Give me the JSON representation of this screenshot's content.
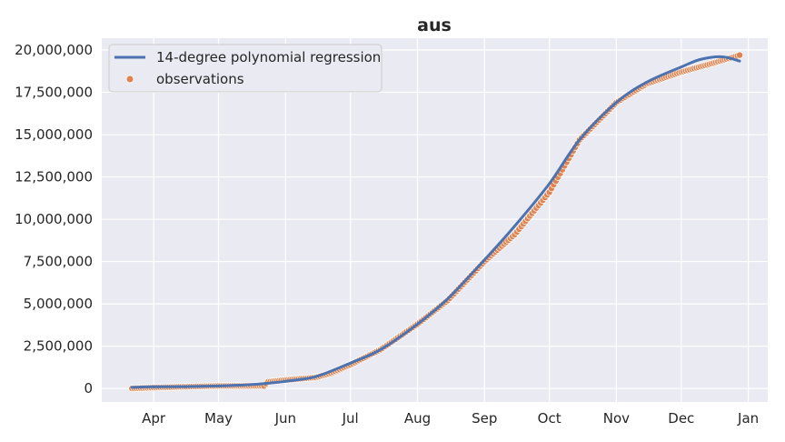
{
  "chart_data": {
    "type": "line",
    "title": "aus",
    "xlabel": "",
    "ylabel": "",
    "x_range": [
      "2021-03-08",
      "2022-01-10"
    ],
    "ylim": [
      -800000,
      20700000
    ],
    "x_ticks": [
      {
        "date": "2021-04-01",
        "label": "Apr"
      },
      {
        "date": "2021-05-01",
        "label": "May"
      },
      {
        "date": "2021-06-01",
        "label": "Jun"
      },
      {
        "date": "2021-07-01",
        "label": "Jul"
      },
      {
        "date": "2021-08-01",
        "label": "Aug"
      },
      {
        "date": "2021-09-01",
        "label": "Sep"
      },
      {
        "date": "2021-10-01",
        "label": "Oct"
      },
      {
        "date": "2021-11-01",
        "label": "Nov"
      },
      {
        "date": "2021-12-01",
        "label": "Dec"
      },
      {
        "date": "2022-01-01",
        "label": "Jan"
      }
    ],
    "y_ticks": [
      {
        "value": 0,
        "label": "0"
      },
      {
        "value": 2500000,
        "label": "2,500,000"
      },
      {
        "value": 5000000,
        "label": "5,000,000"
      },
      {
        "value": 7500000,
        "label": "7,500,000"
      },
      {
        "value": 10000000,
        "label": "10,000,000"
      },
      {
        "value": 12500000,
        "label": "12,500,000"
      },
      {
        "value": 15000000,
        "label": "15,000,000"
      },
      {
        "value": 17500000,
        "label": "17,500,000"
      },
      {
        "value": 20000000,
        "label": "20,000,000"
      }
    ],
    "grid": true,
    "legend_position": "top-left",
    "series": [
      {
        "name": "14-degree polynomial regression",
        "kind": "line",
        "color": "#4c72b0",
        "points": [
          [
            "2021-03-22",
            70000
          ],
          [
            "2021-04-01",
            100000
          ],
          [
            "2021-04-15",
            110000
          ],
          [
            "2021-05-01",
            150000
          ],
          [
            "2021-05-15",
            220000
          ],
          [
            "2021-05-25",
            320000
          ],
          [
            "2021-06-01",
            420000
          ],
          [
            "2021-06-15",
            700000
          ],
          [
            "2021-07-01",
            1500000
          ],
          [
            "2021-07-15",
            2300000
          ],
          [
            "2021-08-01",
            3800000
          ],
          [
            "2021-08-15",
            5300000
          ],
          [
            "2021-09-01",
            7600000
          ],
          [
            "2021-09-15",
            9600000
          ],
          [
            "2021-10-01",
            12100000
          ],
          [
            "2021-10-15",
            14700000
          ],
          [
            "2021-11-01",
            16900000
          ],
          [
            "2021-11-15",
            18100000
          ],
          [
            "2021-12-01",
            19000000
          ],
          [
            "2021-12-10",
            19450000
          ],
          [
            "2021-12-20",
            19600000
          ],
          [
            "2021-12-28",
            19350000
          ]
        ]
      },
      {
        "name": "observations",
        "kind": "scatter",
        "color": "#dd8452",
        "points": [
          [
            "2021-03-22",
            0
          ],
          [
            "2021-04-01",
            50000
          ],
          [
            "2021-04-15",
            100000
          ],
          [
            "2021-05-01",
            150000
          ],
          [
            "2021-05-15",
            150000
          ],
          [
            "2021-05-22",
            150000
          ],
          [
            "2021-05-24",
            400000
          ],
          [
            "2021-06-01",
            500000
          ],
          [
            "2021-06-15",
            650000
          ],
          [
            "2021-06-22",
            900000
          ],
          [
            "2021-07-01",
            1400000
          ],
          [
            "2021-07-15",
            2300000
          ],
          [
            "2021-08-01",
            3800000
          ],
          [
            "2021-08-15",
            5200000
          ],
          [
            "2021-09-01",
            7500000
          ],
          [
            "2021-09-15",
            9100000
          ],
          [
            "2021-10-01",
            11600000
          ],
          [
            "2021-10-15",
            14700000
          ],
          [
            "2021-11-01",
            16900000
          ],
          [
            "2021-11-15",
            18000000
          ],
          [
            "2021-12-01",
            18700000
          ],
          [
            "2021-12-15",
            19200000
          ],
          [
            "2021-12-28",
            19700000
          ]
        ]
      }
    ]
  }
}
